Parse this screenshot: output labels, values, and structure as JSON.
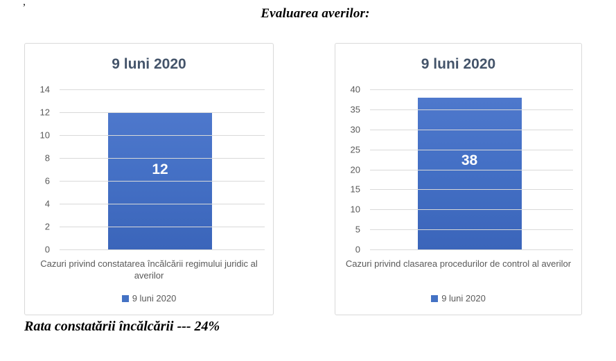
{
  "page": {
    "top_fragment": ",",
    "heading": "Evaluarea averilor:",
    "footer": "Rata constatării încălcării --- 24%"
  },
  "colors": {
    "bar_fill": "#4472C4",
    "bar_gradient_top": "#4E78CC",
    "bar_gradient_bottom": "#3B65BA",
    "chart_title": "#44546A",
    "axis_text": "#595959",
    "gridline": "#D9D9D9",
    "chart_border": "#D9D9D9",
    "data_label": "#FFFFFF"
  },
  "chart_data": [
    {
      "type": "bar",
      "title": "9 luni 2020",
      "categories": [
        "Cazuri privind constatarea încălcării regimului juridic al averilor"
      ],
      "values": [
        12
      ],
      "data_labels": [
        "12"
      ],
      "ylim": [
        0,
        14
      ],
      "yticks": [
        14,
        12,
        10,
        8,
        6,
        4,
        2,
        0
      ],
      "xlabel": "",
      "ylabel": "",
      "grid": true,
      "legend": [
        "9 luni 2020"
      ],
      "legend_position": "bottom"
    },
    {
      "type": "bar",
      "title": "9 luni 2020",
      "categories": [
        "Cazuri privind clasarea procedurilor de control al averilor"
      ],
      "values": [
        38
      ],
      "data_labels": [
        "38"
      ],
      "ylim": [
        0,
        40
      ],
      "yticks": [
        40,
        35,
        30,
        25,
        20,
        15,
        10,
        5,
        0
      ],
      "xlabel": "",
      "ylabel": "",
      "grid": true,
      "legend": [
        "9 luni 2020"
      ],
      "legend_position": "bottom"
    }
  ]
}
